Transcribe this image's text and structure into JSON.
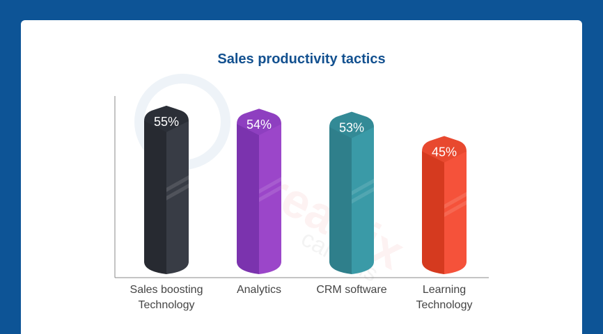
{
  "chart_data": {
    "type": "bar",
    "title": "Sales productivity tactics",
    "categories": [
      [
        "Sales boosting",
        "Technology"
      ],
      [
        "Analytics"
      ],
      [
        "CRM software"
      ],
      [
        "Learning",
        "Technology"
      ]
    ],
    "values": [
      55,
      54,
      53,
      45
    ],
    "value_labels": [
      "55%",
      "54%",
      "53%",
      "45%"
    ],
    "unit": "%",
    "ylim": [
      0,
      60
    ],
    "grid": false,
    "legend": "none",
    "colors": [
      {
        "left": "#272a31",
        "right": "#383c45",
        "top": "#2b2f37"
      },
      {
        "left": "#7b33ae",
        "right": "#9b46c9",
        "top": "#8e3fc0"
      },
      {
        "left": "#2f7f8b",
        "right": "#3a9aa7",
        "top": "#338a96"
      },
      {
        "left": "#d53a1f",
        "right": "#f5523a",
        "top": "#e8492f"
      }
    ]
  },
  "watermark": {
    "text": "creatrix",
    "subtext": "campus",
    "color": "#e23b3b"
  },
  "colors": {
    "background": "#0d5496",
    "card": "#ffffff",
    "title": "#12508f",
    "axis": "#888888"
  }
}
